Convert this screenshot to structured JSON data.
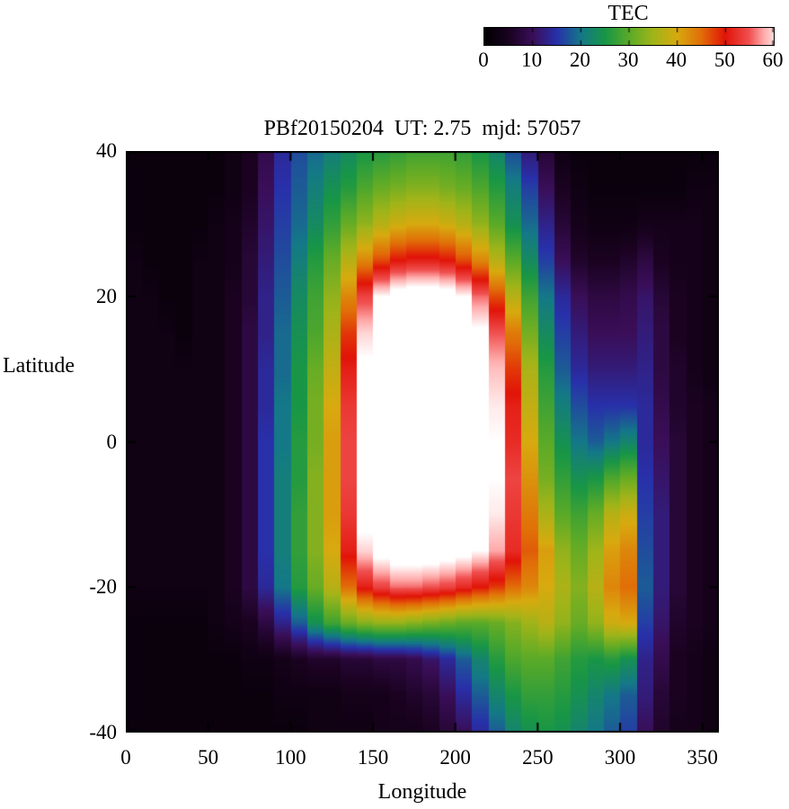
{
  "colorbar": {
    "label": "TEC",
    "ticks": [
      0,
      10,
      20,
      30,
      40,
      50,
      60
    ],
    "min": 0,
    "max": 60
  },
  "palette": {
    "stops": [
      [
        0,
        "#000000"
      ],
      [
        5,
        "#1a0220"
      ],
      [
        10,
        "#3a0e58"
      ],
      [
        15,
        "#2830aa"
      ],
      [
        20,
        "#147888"
      ],
      [
        25,
        "#189646"
      ],
      [
        30,
        "#5aaa28"
      ],
      [
        35,
        "#a0b419"
      ],
      [
        40,
        "#d7aa0f"
      ],
      [
        45,
        "#e16e08"
      ],
      [
        50,
        "#e11408"
      ],
      [
        55,
        "#f05050"
      ],
      [
        58,
        "#ffaaaa"
      ],
      [
        62,
        "#ffffff"
      ],
      [
        70,
        "#ffffff"
      ]
    ]
  },
  "chart_data": {
    "type": "heatmap",
    "title": "PBf20150204  UT: 2.75  mjd: 57057",
    "xlabel": "Longitude",
    "ylabel": "Latitude",
    "colorbar_label": "TEC",
    "xlim": [
      0,
      360
    ],
    "ylim": [
      -40,
      40
    ],
    "zlim": [
      0,
      60
    ],
    "x_ticks": [
      0,
      50,
      100,
      150,
      200,
      250,
      300,
      350
    ],
    "y_ticks": [
      40,
      20,
      0,
      -20,
      -40
    ],
    "colorbar_ticks": [
      0,
      10,
      20,
      30,
      40,
      50,
      60
    ],
    "lons": [
      0,
      10,
      20,
      30,
      40,
      50,
      60,
      70,
      80,
      90,
      100,
      110,
      120,
      130,
      140,
      150,
      160,
      170,
      180,
      190,
      200,
      210,
      220,
      230,
      240,
      250,
      260,
      270,
      280,
      290,
      300,
      310,
      320,
      330,
      340,
      350
    ],
    "lats": [
      40,
      35,
      30,
      25,
      20,
      15,
      10,
      5,
      0,
      -5,
      -10,
      -15,
      -20,
      -25,
      -30,
      -35,
      -40
    ],
    "values": [
      [
        2,
        2,
        2,
        2,
        2,
        2,
        3,
        5,
        9,
        14,
        17,
        19,
        21,
        23,
        25,
        26,
        27,
        28,
        28,
        28,
        27,
        25,
        22,
        17,
        12,
        7,
        3,
        2,
        2,
        2,
        2,
        2,
        2,
        2,
        2,
        2
      ],
      [
        2,
        2,
        2,
        2,
        2,
        2,
        3,
        5,
        10,
        15,
        18,
        21,
        24,
        26,
        29,
        31,
        32,
        33,
        33,
        32,
        31,
        29,
        26,
        21,
        16,
        10,
        5,
        3,
        2,
        2,
        2,
        2,
        2,
        2,
        3,
        3
      ],
      [
        2,
        2,
        2,
        2,
        2,
        3,
        4,
        6,
        11,
        16,
        19,
        23,
        27,
        31,
        34,
        37,
        39,
        40,
        40,
        39,
        37,
        34,
        30,
        24,
        19,
        13,
        7,
        4,
        3,
        3,
        3,
        4,
        4,
        4,
        4,
        3
      ],
      [
        3,
        2,
        2,
        2,
        3,
        3,
        4,
        7,
        12,
        17,
        21,
        26,
        31,
        37,
        43,
        47,
        50,
        51,
        51,
        50,
        47,
        43,
        37,
        30,
        23,
        16,
        10,
        6,
        5,
        5,
        6,
        8,
        5,
        4,
        4,
        3
      ],
      [
        3,
        3,
        2,
        2,
        3,
        3,
        5,
        7,
        13,
        18,
        23,
        28,
        34,
        43,
        54,
        62,
        65,
        66,
        66,
        65,
        62,
        56,
        47,
        37,
        28,
        20,
        14,
        10,
        8,
        8,
        9,
        11,
        7,
        5,
        4,
        3
      ],
      [
        3,
        3,
        3,
        2,
        3,
        3,
        5,
        8,
        13,
        19,
        24,
        29,
        36,
        48,
        60,
        66,
        67,
        67,
        67,
        67,
        66,
        63,
        55,
        44,
        32,
        23,
        16,
        12,
        10,
        10,
        10,
        12,
        8,
        5,
        4,
        3
      ],
      [
        3,
        3,
        3,
        3,
        3,
        3,
        5,
        8,
        14,
        19,
        25,
        31,
        38,
        51,
        63,
        67,
        68,
        68,
        68,
        68,
        67,
        65,
        59,
        48,
        36,
        26,
        18,
        14,
        12,
        12,
        12,
        13,
        8,
        6,
        4,
        3
      ],
      [
        3,
        3,
        3,
        3,
        3,
        3,
        5,
        8,
        14,
        20,
        25,
        32,
        40,
        53,
        64,
        67,
        68,
        68,
        68,
        68,
        67,
        66,
        61,
        51,
        38,
        28,
        21,
        17,
        15,
        15,
        15,
        14,
        9,
        6,
        5,
        4
      ],
      [
        3,
        3,
        3,
        3,
        3,
        3,
        5,
        8,
        15,
        20,
        26,
        32,
        41,
        54,
        64,
        67,
        68,
        68,
        68,
        68,
        68,
        66,
        62,
        52,
        40,
        30,
        24,
        20,
        18,
        20,
        22,
        14,
        10,
        7,
        5,
        4
      ],
      [
        3,
        3,
        3,
        3,
        3,
        3,
        5,
        8,
        15,
        21,
        26,
        33,
        41,
        54,
        65,
        67,
        68,
        68,
        68,
        68,
        68,
        66,
        62,
        54,
        42,
        32,
        27,
        24,
        25,
        29,
        31,
        15,
        11,
        7,
        5,
        4
      ],
      [
        3,
        3,
        3,
        3,
        3,
        3,
        5,
        8,
        15,
        21,
        27,
        33,
        41,
        53,
        64,
        67,
        68,
        68,
        68,
        68,
        67,
        65,
        61,
        53,
        44,
        36,
        30,
        28,
        31,
        37,
        39,
        16,
        12,
        7,
        5,
        4
      ],
      [
        3,
        3,
        3,
        3,
        3,
        3,
        5,
        8,
        15,
        21,
        27,
        33,
        40,
        51,
        60,
        64,
        66,
        66,
        66,
        65,
        64,
        62,
        58,
        52,
        46,
        41,
        34,
        31,
        35,
        41,
        43,
        17,
        12,
        7,
        5,
        4
      ],
      [
        3,
        3,
        3,
        3,
        3,
        3,
        5,
        8,
        14,
        20,
        26,
        31,
        37,
        45,
        51,
        54,
        56,
        56,
        55,
        54,
        52,
        50,
        48,
        45,
        43,
        40,
        36,
        33,
        37,
        43,
        45,
        18,
        12,
        7,
        5,
        4
      ],
      [
        2,
        2,
        2,
        2,
        2,
        3,
        4,
        5,
        8,
        13,
        18,
        24,
        28,
        31,
        33,
        34,
        34,
        33,
        32,
        31,
        30,
        30,
        31,
        33,
        35,
        37,
        34,
        31,
        34,
        39,
        40,
        16,
        11,
        6,
        5,
        4
      ],
      [
        2,
        2,
        2,
        2,
        2,
        2,
        2,
        3,
        3,
        4,
        5,
        6,
        6,
        7,
        7,
        8,
        8,
        9,
        11,
        14,
        18,
        22,
        26,
        29,
        30,
        30,
        28,
        26,
        25,
        26,
        24,
        13,
        9,
        5,
        4,
        3
      ],
      [
        2,
        2,
        2,
        2,
        2,
        2,
        2,
        2,
        2,
        3,
        3,
        3,
        3,
        4,
        4,
        4,
        5,
        6,
        7,
        10,
        14,
        18,
        22,
        25,
        27,
        27,
        26,
        24,
        22,
        20,
        18,
        12,
        7,
        5,
        4,
        3
      ],
      [
        2,
        2,
        2,
        2,
        2,
        2,
        2,
        2,
        2,
        2,
        2,
        3,
        3,
        3,
        3,
        4,
        4,
        4,
        5,
        7,
        10,
        14,
        18,
        22,
        24,
        25,
        24,
        22,
        20,
        18,
        16,
        10,
        6,
        4,
        4,
        3
      ]
    ]
  }
}
